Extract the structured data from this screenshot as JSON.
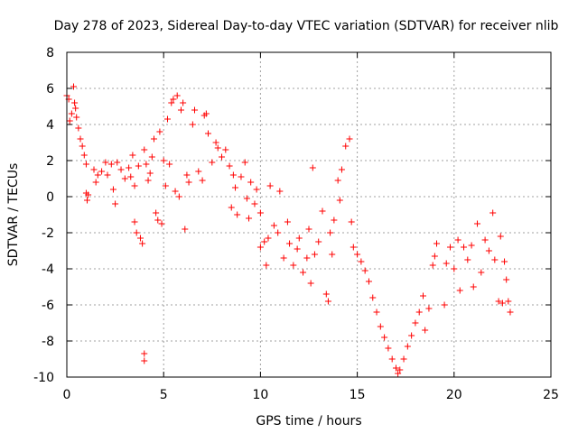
{
  "chart_data": {
    "type": "scatter",
    "title": "Day 278 of 2023, Sidereal Day-to-day VTEC variation (SDTVAR) for receiver nlib",
    "xlabel": "GPS time / hours",
    "ylabel": "SDTVAR / TECUs",
    "xlim": [
      0,
      25
    ],
    "ylim": [
      -10,
      8
    ],
    "xticks": [
      0,
      5,
      10,
      15,
      20,
      25
    ],
    "yticks": [
      -10,
      -8,
      -6,
      -4,
      -2,
      0,
      2,
      4,
      6,
      8
    ],
    "grid": true,
    "marker": "plus",
    "color": "#ff0000",
    "series": [
      {
        "name": "SDTVAR",
        "points": [
          [
            0.0,
            5.6
          ],
          [
            0.1,
            5.4
          ],
          [
            0.15,
            4.2
          ],
          [
            0.25,
            4.6
          ],
          [
            0.35,
            6.1
          ],
          [
            0.4,
            5.2
          ],
          [
            0.45,
            4.9
          ],
          [
            0.5,
            4.4
          ],
          [
            0.6,
            3.8
          ],
          [
            0.7,
            3.2
          ],
          [
            0.8,
            2.8
          ],
          [
            0.9,
            2.3
          ],
          [
            1.0,
            1.8
          ],
          [
            1.0,
            0.2
          ],
          [
            1.05,
            -0.2
          ],
          [
            1.1,
            0.1
          ],
          [
            1.4,
            1.5
          ],
          [
            1.5,
            0.8
          ],
          [
            1.6,
            1.2
          ],
          [
            1.8,
            1.4
          ],
          [
            2.0,
            1.9
          ],
          [
            2.1,
            1.2
          ],
          [
            2.3,
            1.8
          ],
          [
            2.4,
            0.4
          ],
          [
            2.5,
            -0.4
          ],
          [
            2.6,
            1.9
          ],
          [
            2.8,
            1.5
          ],
          [
            3.0,
            1.0
          ],
          [
            3.2,
            1.6
          ],
          [
            3.3,
            1.1
          ],
          [
            3.4,
            2.3
          ],
          [
            3.5,
            0.6
          ],
          [
            3.5,
            -1.4
          ],
          [
            3.6,
            -2.0
          ],
          [
            3.7,
            1.7
          ],
          [
            3.8,
            -2.3
          ],
          [
            3.9,
            -2.6
          ],
          [
            4.0,
            2.6
          ],
          [
            4.0,
            -8.7
          ],
          [
            4.0,
            -9.1
          ],
          [
            4.1,
            1.8
          ],
          [
            4.2,
            0.9
          ],
          [
            4.3,
            1.3
          ],
          [
            4.4,
            2.2
          ],
          [
            4.5,
            3.2
          ],
          [
            4.6,
            -0.9
          ],
          [
            4.7,
            -1.3
          ],
          [
            4.8,
            3.6
          ],
          [
            4.9,
            -1.5
          ],
          [
            5.0,
            2.0
          ],
          [
            5.1,
            0.6
          ],
          [
            5.2,
            4.3
          ],
          [
            5.3,
            1.8
          ],
          [
            5.4,
            5.2
          ],
          [
            5.5,
            5.4
          ],
          [
            5.6,
            0.3
          ],
          [
            5.7,
            5.6
          ],
          [
            5.8,
            0.0
          ],
          [
            5.9,
            4.8
          ],
          [
            6.0,
            5.2
          ],
          [
            6.1,
            -1.8
          ],
          [
            6.2,
            1.2
          ],
          [
            6.3,
            0.8
          ],
          [
            6.5,
            4.0
          ],
          [
            6.6,
            4.8
          ],
          [
            6.8,
            1.4
          ],
          [
            7.0,
            0.9
          ],
          [
            7.1,
            4.5
          ],
          [
            7.2,
            4.6
          ],
          [
            7.3,
            3.5
          ],
          [
            7.5,
            1.9
          ],
          [
            7.7,
            3.0
          ],
          [
            7.8,
            2.7
          ],
          [
            8.0,
            2.2
          ],
          [
            8.2,
            2.6
          ],
          [
            8.4,
            1.7
          ],
          [
            8.5,
            -0.6
          ],
          [
            8.6,
            1.2
          ],
          [
            8.7,
            0.5
          ],
          [
            8.8,
            -1.0
          ],
          [
            9.0,
            1.1
          ],
          [
            9.2,
            1.9
          ],
          [
            9.3,
            -0.1
          ],
          [
            9.4,
            -1.2
          ],
          [
            9.5,
            0.8
          ],
          [
            9.7,
            -0.4
          ],
          [
            9.8,
            0.4
          ],
          [
            10.0,
            -0.9
          ],
          [
            10.0,
            -2.8
          ],
          [
            10.2,
            -2.5
          ],
          [
            10.3,
            -3.8
          ],
          [
            10.4,
            -2.3
          ],
          [
            10.5,
            0.6
          ],
          [
            10.7,
            -1.6
          ],
          [
            10.9,
            -2.0
          ],
          [
            11.0,
            0.3
          ],
          [
            11.2,
            -3.4
          ],
          [
            11.4,
            -1.4
          ],
          [
            11.5,
            -2.6
          ],
          [
            11.7,
            -3.8
          ],
          [
            11.9,
            -2.9
          ],
          [
            12.0,
            -2.3
          ],
          [
            12.2,
            -4.2
          ],
          [
            12.4,
            -3.4
          ],
          [
            12.5,
            -1.8
          ],
          [
            12.6,
            -4.8
          ],
          [
            12.7,
            1.6
          ],
          [
            12.8,
            -3.2
          ],
          [
            13.0,
            -2.5
          ],
          [
            13.2,
            -0.8
          ],
          [
            13.4,
            -5.4
          ],
          [
            13.5,
            -5.8
          ],
          [
            13.6,
            -2.0
          ],
          [
            13.7,
            -3.2
          ],
          [
            13.8,
            -1.3
          ],
          [
            14.0,
            0.9
          ],
          [
            14.1,
            -0.2
          ],
          [
            14.2,
            1.5
          ],
          [
            14.4,
            2.8
          ],
          [
            14.6,
            3.2
          ],
          [
            14.7,
            -1.4
          ],
          [
            14.8,
            -2.8
          ],
          [
            15.0,
            -3.2
          ],
          [
            15.2,
            -3.6
          ],
          [
            15.4,
            -4.1
          ],
          [
            15.6,
            -4.7
          ],
          [
            15.8,
            -5.6
          ],
          [
            16.0,
            -6.4
          ],
          [
            16.2,
            -7.2
          ],
          [
            16.4,
            -7.8
          ],
          [
            16.6,
            -8.4
          ],
          [
            16.8,
            -9.0
          ],
          [
            17.0,
            -9.5
          ],
          [
            17.1,
            -9.8
          ],
          [
            17.2,
            -9.6
          ],
          [
            17.4,
            -9.0
          ],
          [
            17.6,
            -8.3
          ],
          [
            17.8,
            -7.7
          ],
          [
            18.0,
            -7.0
          ],
          [
            18.2,
            -6.4
          ],
          [
            18.4,
            -5.5
          ],
          [
            18.5,
            -7.4
          ],
          [
            18.7,
            -6.2
          ],
          [
            18.9,
            -3.8
          ],
          [
            19.0,
            -3.3
          ],
          [
            19.1,
            -2.6
          ],
          [
            19.5,
            -6.0
          ],
          [
            19.6,
            -3.7
          ],
          [
            19.8,
            -2.8
          ],
          [
            20.0,
            -4.0
          ],
          [
            20.2,
            -2.4
          ],
          [
            20.3,
            -5.2
          ],
          [
            20.5,
            -2.8
          ],
          [
            20.7,
            -3.5
          ],
          [
            20.9,
            -2.7
          ],
          [
            21.0,
            -5.0
          ],
          [
            21.2,
            -1.5
          ],
          [
            21.4,
            -4.2
          ],
          [
            21.6,
            -2.4
          ],
          [
            21.8,
            -3.0
          ],
          [
            22.0,
            -0.9
          ],
          [
            22.1,
            -3.5
          ],
          [
            22.3,
            -5.8
          ],
          [
            22.4,
            -2.2
          ],
          [
            22.5,
            -5.9
          ],
          [
            22.6,
            -3.6
          ],
          [
            22.7,
            -4.6
          ],
          [
            22.8,
            -5.8
          ],
          [
            22.9,
            -6.4
          ]
        ]
      }
    ]
  }
}
